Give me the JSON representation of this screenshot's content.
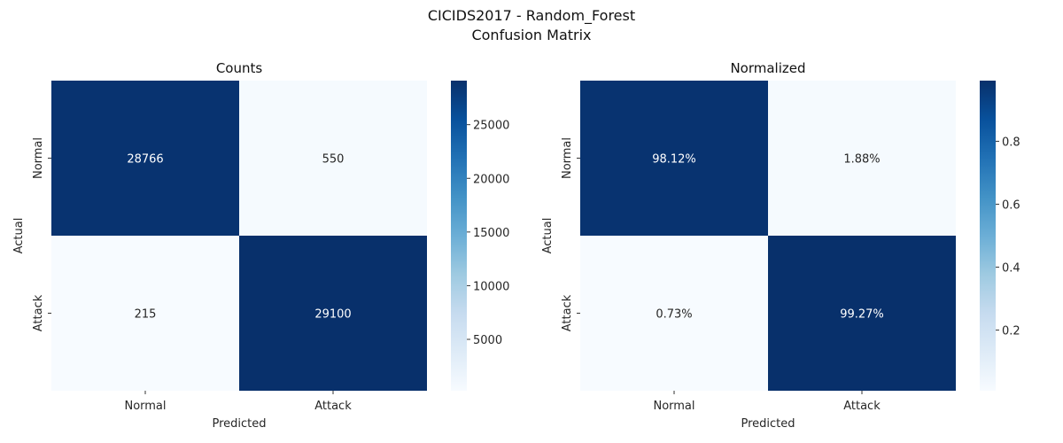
{
  "suptitle": [
    "CICIDS2017 - Random_Forest",
    "Confusion Matrix"
  ],
  "chart_data": [
    {
      "type": "heatmap",
      "title": "Counts",
      "xlabel": "Predicted",
      "ylabel": "Actual",
      "x_categories": [
        "Normal",
        "Attack"
      ],
      "y_categories": [
        "Normal",
        "Attack"
      ],
      "values": [
        [
          28766,
          550
        ],
        [
          215,
          29100
        ]
      ],
      "cell_labels": [
        [
          "28766",
          "550"
        ],
        [
          "215",
          "29100"
        ]
      ],
      "colorbar": {
        "range": [
          215,
          29100
        ],
        "ticks": [
          5000,
          10000,
          15000,
          20000,
          25000
        ],
        "tick_labels": [
          "5000",
          "10000",
          "15000",
          "20000",
          "25000"
        ]
      },
      "colormap": "Blues"
    },
    {
      "type": "heatmap",
      "title": "Normalized",
      "xlabel": "Predicted",
      "ylabel": "Actual",
      "x_categories": [
        "Normal",
        "Attack"
      ],
      "y_categories": [
        "Normal",
        "Attack"
      ],
      "values": [
        [
          0.9812,
          0.0188
        ],
        [
          0.0073,
          0.9927
        ]
      ],
      "cell_labels": [
        [
          "98.12%",
          "1.88%"
        ],
        [
          "0.73%",
          "99.27%"
        ]
      ],
      "colorbar": {
        "range": [
          0.0073,
          0.9927
        ],
        "ticks": [
          0.2,
          0.4,
          0.6,
          0.8
        ],
        "tick_labels": [
          "0.2",
          "0.4",
          "0.6",
          "0.8"
        ]
      },
      "colormap": "Blues"
    }
  ],
  "colors": {
    "low": "#f7fbff",
    "high": "#08306b",
    "text_dark": "#262626",
    "text_light": "#ffffff"
  }
}
